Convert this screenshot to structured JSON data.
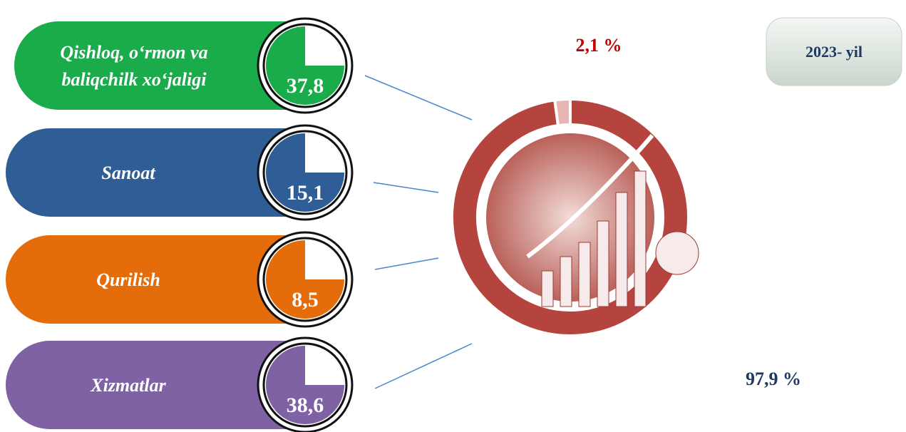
{
  "chart_data": {
    "type": "donut",
    "title": "2023- yil",
    "values": [
      2.1,
      97.9
    ],
    "value_labels": [
      "2,1 %",
      "97,9 %"
    ],
    "colors": [
      "#e8b4b4",
      "#b5443f"
    ]
  },
  "sectors": [
    {
      "label": [
        "Qishloq, o‘rmon va",
        "baliqchilk xo‘jaligi"
      ],
      "value": "37,8",
      "color": "#1aab4b"
    },
    {
      "label": [
        "Sanoat"
      ],
      "value": "15,1",
      "color": "#2f5e96"
    },
    {
      "label": [
        "Qurilish"
      ],
      "value": "8,5",
      "color": "#e46c0a"
    },
    {
      "label": [
        "Xizmatlar"
      ],
      "value": "38,6",
      "color": "#7f62a3"
    }
  ]
}
